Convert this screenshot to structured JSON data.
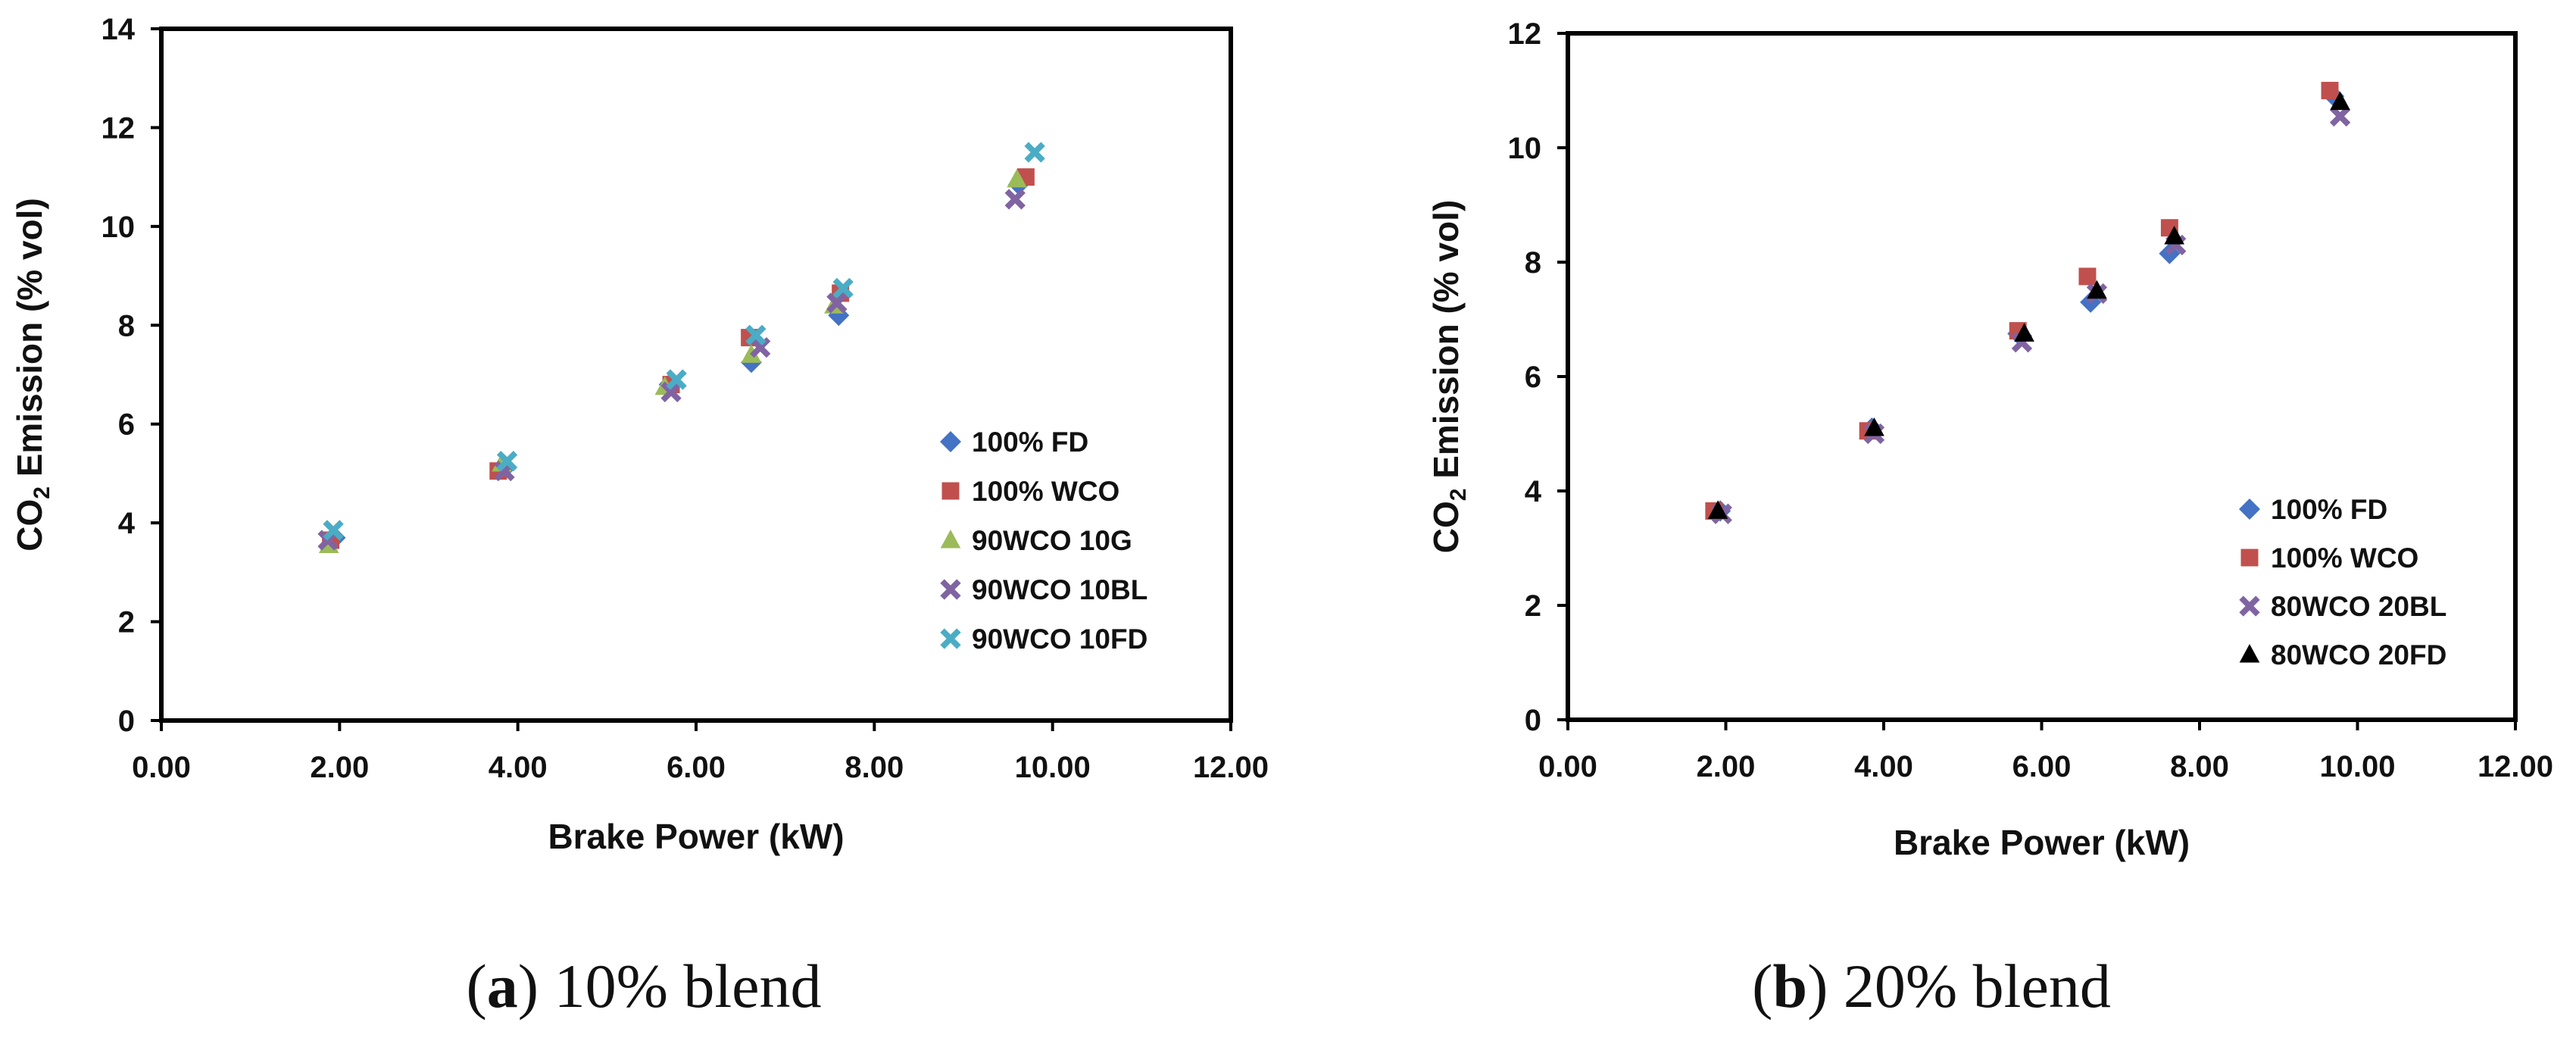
{
  "chart_data": [
    {
      "type": "scatter",
      "caption_label": "a",
      "caption_text": " 10% blend",
      "xlabel": "Brake Power (kW)",
      "ylabel_prefix": "CO",
      "ylabel_sub": "2",
      "ylabel_suffix": " Emission (% vol)",
      "xlim": [
        0,
        12
      ],
      "ylim": [
        0,
        14
      ],
      "xticks": [
        "0.00",
        "2.00",
        "4.00",
        "6.00",
        "8.00",
        "10.00",
        "12.00"
      ],
      "yticks": [
        "0",
        "2",
        "4",
        "6",
        "8",
        "10",
        "12",
        "14"
      ],
      "grid": false,
      "legend_position": "right",
      "series": [
        {
          "name": "100% FD",
          "marker": "diamond",
          "color": "#4472C4",
          "x": [
            1.95,
            3.85,
            5.7,
            6.62,
            7.6,
            9.62
          ],
          "y": [
            3.7,
            5.1,
            6.8,
            7.25,
            8.2,
            10.85
          ]
        },
        {
          "name": "100% WCO",
          "marker": "square",
          "color": "#C0504D",
          "x": [
            1.9,
            3.78,
            5.72,
            6.6,
            7.62,
            9.7
          ],
          "y": [
            3.65,
            5.05,
            6.8,
            7.75,
            8.65,
            11.0
          ]
        },
        {
          "name": "90WCO 10G",
          "marker": "triangle",
          "color": "#9BBB59",
          "x": [
            1.88,
            3.82,
            5.65,
            6.62,
            7.55,
            9.6
          ],
          "y": [
            3.55,
            5.2,
            6.75,
            7.4,
            8.4,
            10.95
          ]
        },
        {
          "name": "90WCO 10BL",
          "marker": "x",
          "color": "#8064A2",
          "x": [
            1.87,
            3.85,
            5.72,
            6.72,
            7.58,
            9.58
          ],
          "y": [
            3.65,
            5.05,
            6.65,
            7.55,
            8.45,
            10.55
          ]
        },
        {
          "name": "90WCO 10FD",
          "marker": "x",
          "color": "#4BACC6",
          "x": [
            1.93,
            3.88,
            5.78,
            6.67,
            7.65,
            9.8
          ],
          "y": [
            3.85,
            5.25,
            6.9,
            7.8,
            8.75,
            11.5
          ]
        }
      ]
    },
    {
      "type": "scatter",
      "caption_label": "b",
      "caption_text": " 20% blend",
      "xlabel": "Brake Power (kW)",
      "ylabel_prefix": "CO",
      "ylabel_sub": "2",
      "ylabel_suffix": " Emission (% vol)",
      "xlim": [
        0,
        12
      ],
      "ylim": [
        0,
        12
      ],
      "xticks": [
        "0.00",
        "2.00",
        "4.00",
        "6.00",
        "8.00",
        "10.00",
        "12.00"
      ],
      "yticks": [
        "0",
        "2",
        "4",
        "6",
        "8",
        "10",
        "12"
      ],
      "grid": false,
      "legend_position": "bottom-right",
      "series": [
        {
          "name": "100% FD",
          "marker": "diamond",
          "color": "#4472C4",
          "x": [
            1.93,
            3.85,
            5.7,
            6.62,
            7.62,
            9.7
          ],
          "y": [
            3.65,
            5.1,
            6.75,
            7.3,
            8.15,
            10.9
          ]
        },
        {
          "name": "100% WCO",
          "marker": "square",
          "color": "#C0504D",
          "x": [
            1.85,
            3.8,
            5.7,
            6.58,
            7.62,
            9.65
          ],
          "y": [
            3.65,
            5.05,
            6.8,
            7.75,
            8.6,
            11.0
          ]
        },
        {
          "name": "80WCO 20BL",
          "marker": "x",
          "color": "#8064A2",
          "x": [
            1.95,
            3.88,
            5.75,
            6.7,
            7.7,
            9.78
          ],
          "y": [
            3.6,
            5.0,
            6.6,
            7.45,
            8.3,
            10.55
          ]
        },
        {
          "name": "80WCO 20FD",
          "marker": "triangle",
          "color": "#000000",
          "x": [
            1.9,
            3.88,
            5.78,
            6.7,
            7.68,
            9.78
          ],
          "y": [
            3.65,
            5.1,
            6.75,
            7.5,
            8.45,
            10.8
          ]
        }
      ]
    }
  ]
}
